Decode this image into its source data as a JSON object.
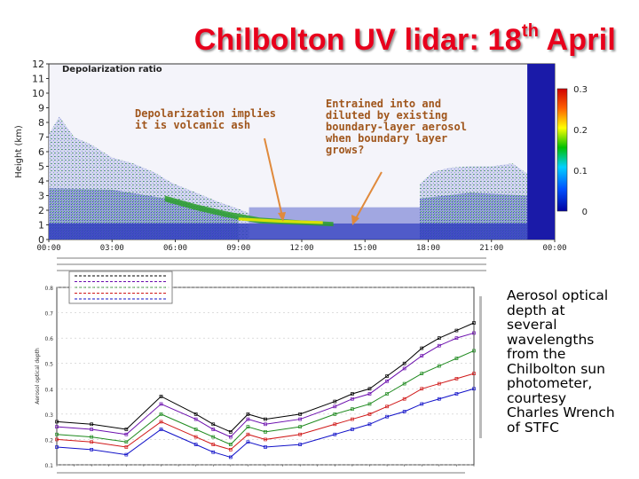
{
  "title": {
    "main": "Chilbolton UV lidar: 18",
    "sup": "th",
    "tail": " April"
  },
  "chart_data": [
    {
      "type": "heatmap",
      "title": "Depolarization ratio",
      "ylabel": "Height (km)",
      "xlabel": "",
      "ylim": [
        0,
        12
      ],
      "yticks": [
        "0",
        "1",
        "2",
        "3",
        "4",
        "5",
        "6",
        "7",
        "8",
        "9",
        "10",
        "11",
        "12"
      ],
      "xticks": [
        "00:00",
        "03:00",
        "06:00",
        "09:00",
        "12:00",
        "15:00",
        "18:00",
        "21:00",
        "00:00"
      ],
      "colorbar": {
        "ticks": [
          "0",
          "0.1",
          "0.2",
          "0.3"
        ],
        "range": [
          0,
          0.3
        ]
      },
      "annotations": [
        {
          "text": "Depolarization implies\nit is volcanic ash"
        },
        {
          "text": "Entrained into and\ndiluted by existing\nboundary-layer aerosol\nwhen boundary layer\ngrows?"
        }
      ]
    },
    {
      "type": "line",
      "ylabel": "Aerosol optical depth",
      "xlim": [
        0,
        24
      ],
      "ylim": [
        0.1,
        0.8
      ],
      "yticks": [
        "0.1",
        "0.2",
        "0.3",
        "0.4",
        "0.5",
        "0.6",
        "0.7",
        "0.8"
      ],
      "series": [
        {
          "color": "#000000",
          "x": [
            0,
            2,
            4,
            6,
            8,
            9,
            10,
            11,
            12,
            14,
            16,
            17,
            18,
            19,
            20,
            21,
            22,
            23,
            24
          ],
          "values": [
            0.27,
            0.26,
            0.24,
            0.37,
            0.3,
            0.26,
            0.23,
            0.3,
            0.28,
            0.3,
            0.35,
            0.38,
            0.4,
            0.45,
            0.5,
            0.56,
            0.6,
            0.63,
            0.66
          ]
        },
        {
          "color": "#6a0dad",
          "x": [
            0,
            2,
            4,
            6,
            8,
            9,
            10,
            11,
            12,
            14,
            16,
            17,
            18,
            19,
            20,
            21,
            22,
            23,
            24
          ],
          "values": [
            0.25,
            0.24,
            0.22,
            0.34,
            0.28,
            0.24,
            0.21,
            0.28,
            0.26,
            0.28,
            0.33,
            0.36,
            0.38,
            0.43,
            0.48,
            0.53,
            0.57,
            0.6,
            0.62
          ]
        },
        {
          "color": "#1e8a1e",
          "x": [
            0,
            2,
            4,
            6,
            8,
            9,
            10,
            11,
            12,
            14,
            16,
            17,
            18,
            19,
            20,
            21,
            22,
            23,
            24
          ],
          "values": [
            0.22,
            0.21,
            0.19,
            0.3,
            0.24,
            0.21,
            0.18,
            0.25,
            0.23,
            0.25,
            0.3,
            0.32,
            0.34,
            0.38,
            0.42,
            0.46,
            0.49,
            0.52,
            0.55
          ]
        },
        {
          "color": "#d01818",
          "x": [
            0,
            2,
            4,
            6,
            8,
            9,
            10,
            11,
            12,
            14,
            16,
            17,
            18,
            19,
            20,
            21,
            22,
            23,
            24
          ],
          "values": [
            0.2,
            0.19,
            0.17,
            0.27,
            0.21,
            0.18,
            0.16,
            0.22,
            0.2,
            0.22,
            0.26,
            0.28,
            0.3,
            0.33,
            0.36,
            0.4,
            0.42,
            0.44,
            0.46
          ]
        },
        {
          "color": "#1010c8",
          "x": [
            0,
            2,
            4,
            6,
            8,
            9,
            10,
            11,
            12,
            14,
            16,
            17,
            18,
            19,
            20,
            21,
            22,
            23,
            24
          ],
          "values": [
            0.17,
            0.16,
            0.14,
            0.24,
            0.18,
            0.15,
            0.13,
            0.19,
            0.17,
            0.18,
            0.22,
            0.24,
            0.26,
            0.29,
            0.31,
            0.34,
            0.36,
            0.38,
            0.4
          ]
        }
      ]
    }
  ],
  "side_text": "Aerosol optical\ndepth at\nseveral\nwavelengths\nfrom the\nChilbolton sun\nphotometer,\ncourtesy\nCharles Wrench\nof STFC"
}
